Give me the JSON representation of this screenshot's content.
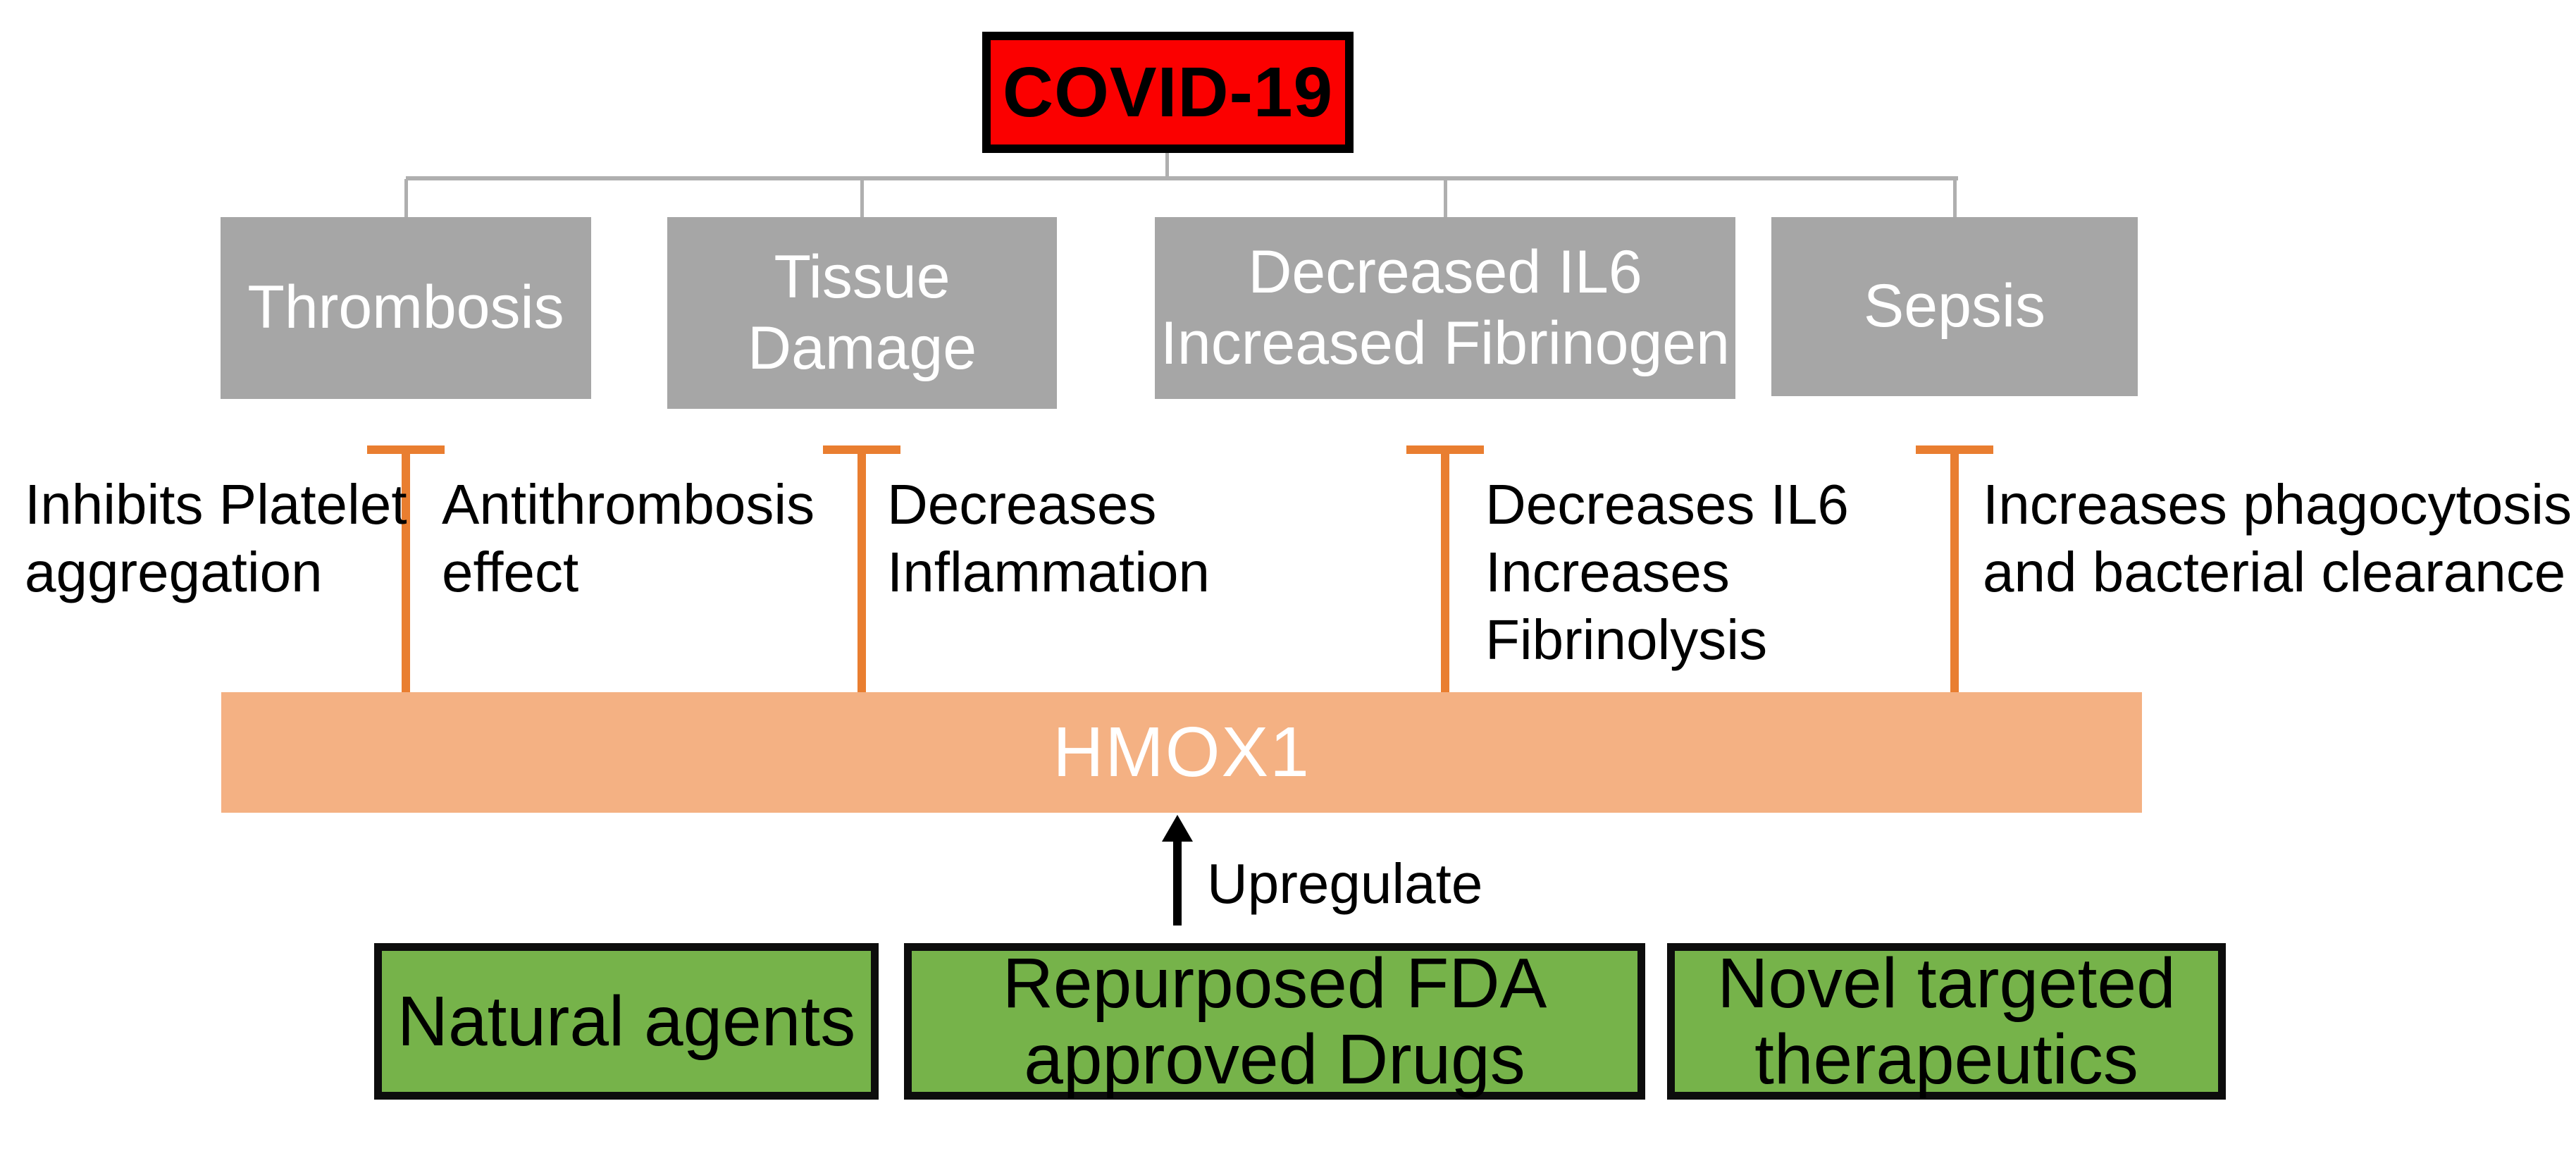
{
  "diagram": {
    "title_node": {
      "label": "COVID-19"
    },
    "consequences": [
      {
        "label": "Thrombosis"
      },
      {
        "label": "Tissue\nDamage"
      },
      {
        "label": "Decreased IL6\nIncreased Fibrinogen"
      },
      {
        "label": "Sepsis"
      }
    ],
    "effects": [
      {
        "text": "Inhibits Platelet\naggregation"
      },
      {
        "text": "Antithrombosis\neffect"
      },
      {
        "text": "Decreases\nInflammation"
      },
      {
        "text": "Decreases IL6\nIncreases\nFibrinolysis"
      },
      {
        "text": "Increases phagocytosis\nand bacterial clearance"
      }
    ],
    "hub": {
      "label": "HMOX1"
    },
    "arrow": {
      "label": "Upregulate"
    },
    "therapies": [
      {
        "label": "Natural agents"
      },
      {
        "label": "Repurposed FDA\napproved Drugs"
      },
      {
        "label": "Novel targeted\ntherapeutics"
      }
    ],
    "colors": {
      "red": "#fb0000",
      "gray_box": "#a6a6a6",
      "connector": "#afafaf",
      "orange_line": "#e97e30",
      "hub_fill": "#f4b183",
      "green_fill": "#76b34a",
      "ink": "#000000",
      "box_text": "#ffffff"
    }
  }
}
